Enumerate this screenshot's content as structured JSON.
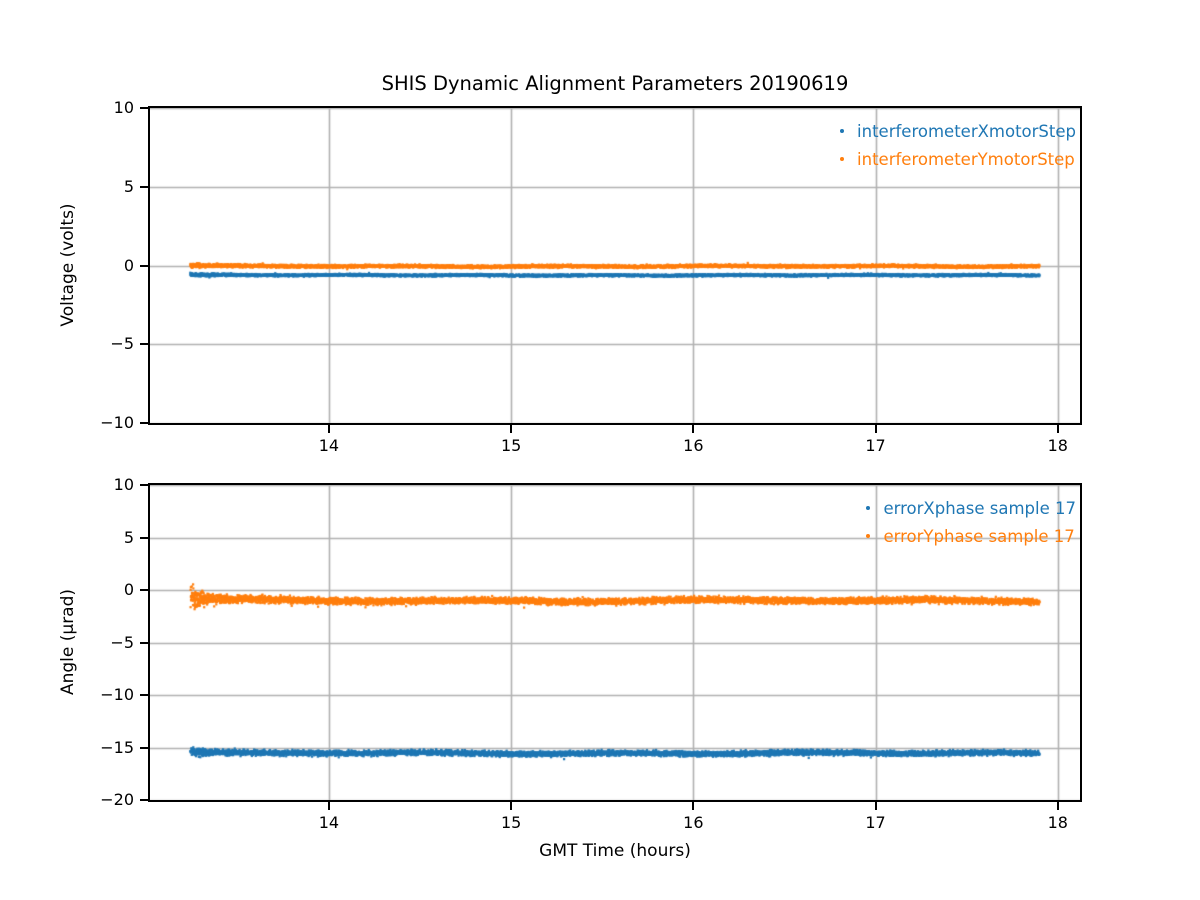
{
  "chart_data": {
    "type": "scatter",
    "title": "SHIS Dynamic Alignment Parameters 20190619",
    "xlabel": "GMT Time (hours)",
    "xlim": [
      13.018,
      18.122
    ],
    "xticks": [
      14,
      15,
      16,
      17,
      18
    ],
    "xticklabels": [
      "14",
      "15",
      "16",
      "17",
      "18"
    ],
    "grid": true,
    "grid_color": "#b0b0b0",
    "legend_position": "upper right",
    "data_x_start": 13.24,
    "data_x_end": 17.9,
    "subplots": [
      {
        "ylabel": "Voltage (volts)",
        "ylim": [
          -10,
          10
        ],
        "yticks": [
          10,
          5,
          0,
          -5,
          -10
        ],
        "yticklabels": [
          "10",
          "5",
          "0",
          "−5",
          "−10"
        ],
        "series": [
          {
            "name": "interferometerXmotorStep",
            "color": "#1f77b4",
            "mean": -0.62,
            "mean_start_boost": 0.03,
            "mean_decay": 0.15,
            "noise": 0.1,
            "noise_start_boost": 0.08,
            "noise_decay": 0.12,
            "wiggle_amp": 0.015,
            "wiggle_freq": 9
          },
          {
            "name": "interferometerYmotorStep",
            "color": "#ff7f0e",
            "mean": -0.05,
            "mean_start_boost": 0.04,
            "mean_decay": 0.12,
            "noise": 0.13,
            "noise_start_boost": 0.1,
            "noise_decay": 0.12,
            "wiggle_amp": 0.02,
            "wiggle_freq": 7
          }
        ]
      },
      {
        "ylabel": "Angle (μrad)",
        "ylim": [
          -20,
          10
        ],
        "yticks": [
          10,
          5,
          0,
          -5,
          -10,
          -15,
          -20
        ],
        "yticklabels": [
          "10",
          "5",
          "0",
          "−5",
          "−10",
          "−15",
          "−20"
        ],
        "series": [
          {
            "name": "errorXphase sample 17",
            "color": "#1f77b4",
            "mean": -15.55,
            "mean_start_boost": 0.1,
            "mean_decay": 0.1,
            "noise": 0.35,
            "noise_start_boost": 0.25,
            "noise_decay": 0.15,
            "wiggle_amp": 0.05,
            "wiggle_freq": 6
          },
          {
            "name": "errorYphase sample 17",
            "color": "#ff7f0e",
            "mean": -1.02,
            "mean_start_boost": 0.2,
            "mean_decay": 0.12,
            "noise": 0.42,
            "noise_start_boost": 1.0,
            "noise_decay": 0.06,
            "noise_start_boost2": 0.28,
            "noise_decay2": 0.3,
            "wiggle_amp": 0.07,
            "wiggle_freq": 5
          }
        ]
      }
    ]
  }
}
